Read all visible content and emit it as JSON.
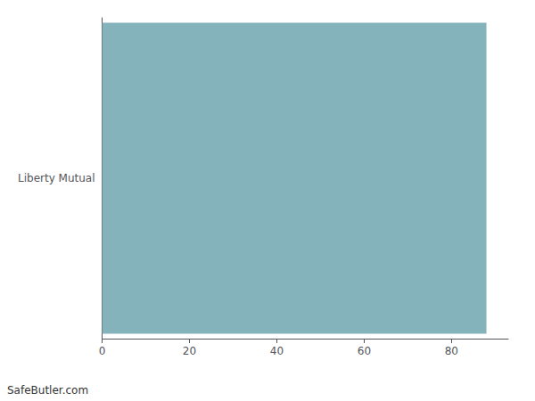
{
  "chart_data": {
    "type": "bar",
    "orientation": "horizontal",
    "categories": [
      "Liberty Mutual"
    ],
    "values": [
      88
    ],
    "color": "#84b3bc",
    "xlim": [
      0,
      93
    ],
    "xticks": [
      0,
      20,
      40,
      60,
      80
    ],
    "grid": false,
    "annotations": [
      "SafeButler.com"
    ]
  }
}
